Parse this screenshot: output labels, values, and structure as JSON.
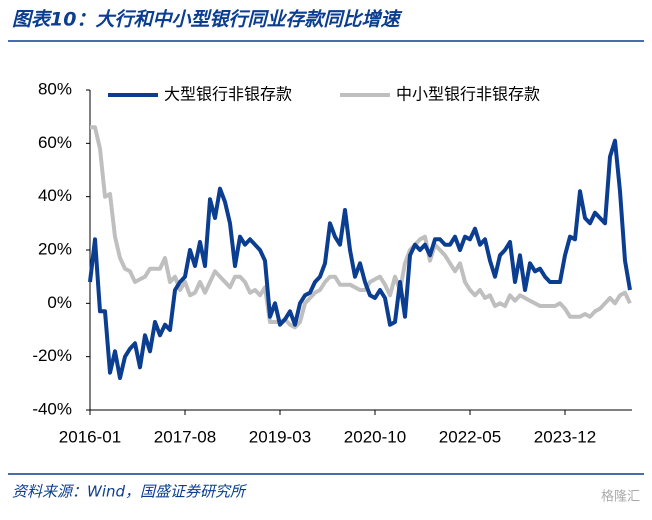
{
  "title": "图表10：大行和中小型银行同业存款同比增速",
  "source": "资料来源：Wind，国盛证券研究所",
  "watermark": "格隆汇",
  "chart_data": {
    "type": "line",
    "categories": [
      "2016-01",
      null,
      null,
      null,
      null,
      null,
      null,
      null,
      null,
      null,
      null,
      null,
      null,
      null,
      null,
      null,
      null,
      null,
      null,
      "2017-08",
      null,
      null,
      null,
      null,
      null,
      null,
      null,
      null,
      null,
      null,
      null,
      null,
      null,
      null,
      null,
      null,
      null,
      null,
      "2019-03",
      null,
      null,
      null,
      null,
      null,
      null,
      null,
      null,
      null,
      null,
      null,
      null,
      null,
      null,
      null,
      null,
      null,
      null,
      "2020-10",
      null,
      null,
      null,
      null,
      null,
      null,
      null,
      null,
      null,
      null,
      null,
      null,
      null,
      null,
      null,
      null,
      null,
      null,
      "2022-05",
      null,
      null,
      null,
      null,
      null,
      null,
      null,
      null,
      null,
      null,
      null,
      null,
      null,
      null,
      null,
      null,
      null,
      null,
      "2023-12",
      null,
      null,
      null,
      null,
      null,
      null,
      null,
      null,
      null,
      null,
      null,
      null,
      null
    ],
    "series": [
      {
        "name": "大型银行非银存款",
        "color": "#0b3d91",
        "values": [
          8,
          24,
          -3,
          -3,
          -26,
          -18,
          -28,
          -20,
          -17,
          -15,
          -24,
          -12,
          -18,
          -7,
          -12,
          -8,
          -10,
          5,
          8,
          10,
          20,
          14,
          23,
          14,
          39,
          32,
          43,
          38,
          30,
          14,
          25,
          22,
          24,
          22,
          20,
          16,
          -5,
          0,
          -8,
          -6,
          -3,
          -8,
          0,
          3,
          4,
          8,
          10,
          15,
          30,
          25,
          22,
          35,
          20,
          10,
          15,
          8,
          3,
          2,
          5,
          2,
          -8,
          -7,
          8,
          -5,
          18,
          22,
          20,
          22,
          18,
          24,
          24,
          22,
          22,
          25,
          20,
          25,
          24,
          28,
          22,
          24,
          16,
          10,
          18,
          20,
          23,
          8,
          18,
          5,
          15,
          12,
          13,
          10,
          8,
          8,
          8,
          18,
          25,
          24,
          42,
          32,
          30,
          34,
          32,
          30,
          55,
          61,
          42,
          16,
          5
        ]
      },
      {
        "name": "中小型银行非银存款",
        "color": "#bfbfbf",
        "values": [
          66,
          66,
          58,
          40,
          41,
          25,
          17,
          13,
          12,
          8,
          9,
          10,
          13,
          13,
          13,
          17,
          8,
          10,
          5,
          8,
          3,
          4,
          8,
          4,
          8,
          12,
          10,
          8,
          6,
          10,
          10,
          8,
          4,
          5,
          3,
          6,
          -7,
          -7,
          -7,
          -6,
          -8,
          -9,
          -7,
          0,
          2,
          4,
          5,
          8,
          10,
          10,
          7,
          7,
          7,
          6,
          5,
          5,
          8,
          9,
          10,
          7,
          3,
          10,
          5,
          15,
          20,
          22,
          24,
          25,
          16,
          22,
          20,
          18,
          15,
          12,
          15,
          8,
          5,
          3,
          5,
          2,
          3,
          -1,
          0,
          -1,
          3,
          1,
          3,
          2,
          1,
          0,
          -1,
          -1,
          -1,
          -1,
          0,
          -2,
          -5,
          -5,
          -5,
          -4,
          -5,
          -3,
          -2,
          0,
          2,
          0,
          3,
          4,
          0
        ]
      }
    ],
    "ylim": [
      -40,
      80
    ],
    "yticks": [
      {
        "value": -40,
        "label": "-40%"
      },
      {
        "value": -20,
        "label": "-20%"
      },
      {
        "value": 0,
        "label": "0%"
      },
      {
        "value": 20,
        "label": "20%"
      },
      {
        "value": 40,
        "label": "40%"
      },
      {
        "value": 60,
        "label": "60%"
      },
      {
        "value": 80,
        "label": "80%"
      }
    ],
    "legend": "top"
  }
}
